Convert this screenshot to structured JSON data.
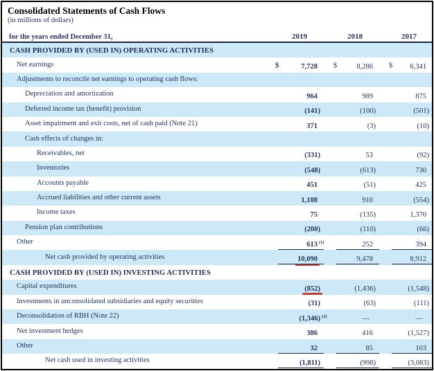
{
  "document": {
    "title": "Consolidated Statements of Cash Flows",
    "subtitle": "(in millions of dollars)",
    "period_label": "for the years ended December 31,",
    "years": [
      "2019",
      "2018",
      "2017"
    ]
  },
  "colors": {
    "row_shade_blue": "#cde8f7",
    "text_navy": "#22335a",
    "header_rule": "#1b2745",
    "annotation_red": "#c43e38",
    "frame_border": "#000000"
  },
  "table": {
    "rows": [
      {
        "type": "section",
        "label": "CASH PROVIDED BY (USED IN) OPERATING ACTIVITIES",
        "indent": 0,
        "shade": true
      },
      {
        "type": "data",
        "label": "Net earnings",
        "indent": 1,
        "shade": false,
        "dollar": true,
        "values": [
          "7,728",
          "8,286",
          "6,341"
        ]
      },
      {
        "type": "label",
        "label": "Adjustments to reconcile net earnings to operating cash flows:",
        "indent": 1,
        "shade": true
      },
      {
        "type": "data",
        "label": "Depreciation and amortization",
        "indent": 2,
        "shade": false,
        "values": [
          "964",
          "989",
          "875"
        ]
      },
      {
        "type": "data",
        "label": "Deferred income tax (benefit) provision",
        "indent": 2,
        "shade": true,
        "values": [
          "(141)",
          "(100)",
          "(501)"
        ]
      },
      {
        "type": "data",
        "label": "Asset impairment and exit costs, net of cash paid (Note 21)",
        "indent": 2,
        "shade": false,
        "values": [
          "371",
          "(3)",
          "(10)"
        ]
      },
      {
        "type": "label",
        "label": "Cash effects of changes in:",
        "indent": 2,
        "shade": true
      },
      {
        "type": "data",
        "label": "Receivables, net",
        "indent": 3,
        "shade": false,
        "values": [
          "(331)",
          "53",
          "(92)"
        ]
      },
      {
        "type": "data",
        "label": "Inventories",
        "indent": 3,
        "shade": true,
        "values": [
          "(548)",
          "(613)",
          "730"
        ]
      },
      {
        "type": "data",
        "label": "Accounts payable",
        "indent": 3,
        "shade": false,
        "values": [
          "451",
          "(51)",
          "425"
        ]
      },
      {
        "type": "data",
        "label": "Accrued liabilities and other current assets",
        "indent": 3,
        "shade": true,
        "values": [
          "1,108",
          "910",
          "(554)"
        ]
      },
      {
        "type": "data",
        "label": "Income taxes",
        "indent": 3,
        "shade": false,
        "values": [
          "75",
          "(135)",
          "1,370"
        ]
      },
      {
        "type": "data",
        "label": "Pension plan contributions",
        "indent": 2,
        "shade": true,
        "values": [
          "(200)",
          "(110)",
          "(66)"
        ]
      },
      {
        "type": "data",
        "label": "Other",
        "indent": 1,
        "shade": false,
        "values": [
          "613",
          "252",
          "394"
        ],
        "sup": "(1)",
        "underline": true
      },
      {
        "type": "data",
        "label": "Net cash provided by operating activities",
        "indent": 4,
        "shade": true,
        "values": [
          "10,090",
          "9,478",
          "8,912"
        ],
        "underline": true,
        "red_mark_col": 0
      },
      {
        "type": "section",
        "label": "CASH PROVIDED BY (USED IN) INVESTING ACTIVITIES",
        "indent": 0,
        "shade": false
      },
      {
        "type": "data",
        "label": "Capital expenditures",
        "indent": 1,
        "shade": true,
        "values": [
          "(852)",
          "(1,436)",
          "(1,548)"
        ],
        "red_mark_col": 0
      },
      {
        "type": "data",
        "label": "Investments in unconsolidated subsidiaries and equity securities",
        "indent": 1,
        "shade": false,
        "values": [
          "(31)",
          "(63)",
          "(111)"
        ]
      },
      {
        "type": "data",
        "label": "Deconsolidation of RBH (Note 22)",
        "indent": 1,
        "shade": true,
        "values": [
          "(1,346)",
          "—",
          "—"
        ],
        "sup": "(2)"
      },
      {
        "type": "data",
        "label": "Net investment hedges",
        "indent": 1,
        "shade": false,
        "values": [
          "386",
          "416",
          "(1,527)"
        ]
      },
      {
        "type": "data",
        "label": "Other",
        "indent": 1,
        "shade": true,
        "values": [
          "32",
          "85",
          "103"
        ],
        "underline": true
      },
      {
        "type": "data",
        "label": "Net cash used in investing activities",
        "indent": 4,
        "shade": false,
        "values": [
          "(1,811)",
          "(998)",
          "(3,083)"
        ],
        "underline": true
      }
    ]
  }
}
